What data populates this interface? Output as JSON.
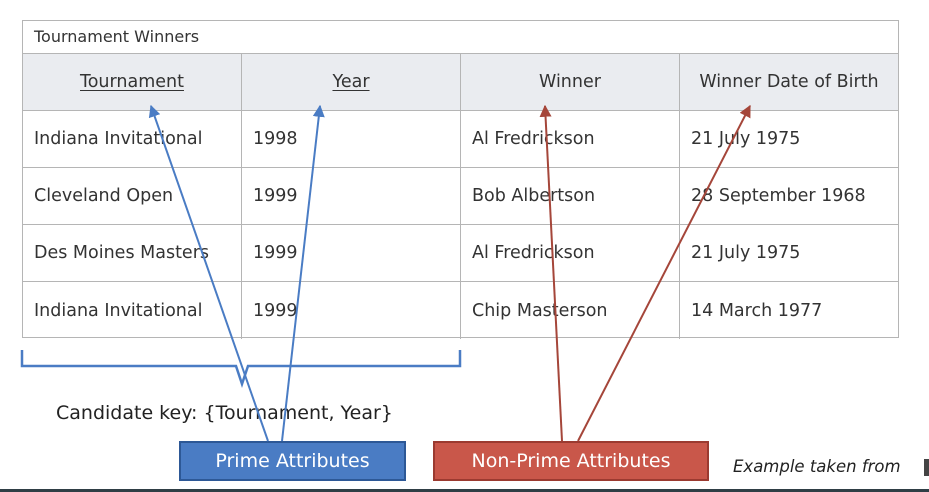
{
  "table": {
    "caption": "Tournament Winners",
    "headers": [
      {
        "label": "Tournament",
        "key": true
      },
      {
        "label": "Year",
        "key": true
      },
      {
        "label": "Winner",
        "key": false
      },
      {
        "label": "Winner Date of Birth",
        "key": false
      }
    ],
    "rows": [
      [
        "Indiana Invitational",
        "1998",
        "Al Fredrickson",
        "21 July 1975"
      ],
      [
        "Cleveland Open",
        "1999",
        "Bob Albertson",
        "28 September 1968"
      ],
      [
        "Des Moines Masters",
        "1999",
        "Al Fredrickson",
        "21 July 1975"
      ],
      [
        "Indiana Invitational",
        "1999",
        "Chip Masterson",
        "14 March 1977"
      ]
    ]
  },
  "candidate_key_text": "Candidate key: {Tournament, Year}",
  "labels": {
    "prime": "Prime Attributes",
    "nonprime": "Non-Prime Attributes"
  },
  "source_note": "Example taken from",
  "colors": {
    "prime": "#4a7cc4",
    "nonprime": "#c9574a",
    "header_bg": "#eaecf0",
    "border": "#b5b5b5"
  }
}
